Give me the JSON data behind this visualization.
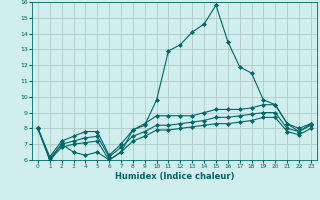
{
  "xlabel": "Humidex (Indice chaleur)",
  "x": [
    0,
    1,
    2,
    3,
    4,
    5,
    6,
    7,
    8,
    9,
    10,
    11,
    12,
    13,
    14,
    15,
    16,
    17,
    18,
    19,
    20,
    21,
    22,
    23
  ],
  "line1": [
    8,
    6,
    7,
    6.5,
    6.3,
    6.5,
    6,
    6.5,
    7.9,
    8.2,
    9.8,
    12.9,
    13.3,
    14.1,
    14.6,
    15.8,
    13.5,
    11.9,
    11.5,
    9.8,
    9.5,
    8.3,
    7.8,
    8.3
  ],
  "line2": [
    8,
    6.2,
    7.2,
    7.5,
    7.8,
    7.8,
    6.3,
    7.0,
    7.9,
    8.3,
    8.8,
    8.8,
    8.8,
    8.8,
    9.0,
    9.2,
    9.2,
    9.2,
    9.3,
    9.5,
    9.5,
    8.3,
    8.0,
    8.3
  ],
  "line3": [
    8,
    6.1,
    7.0,
    7.2,
    7.4,
    7.5,
    6.2,
    6.8,
    7.5,
    7.8,
    8.2,
    8.2,
    8.3,
    8.4,
    8.5,
    8.7,
    8.7,
    8.8,
    8.9,
    9.0,
    9.0,
    8.0,
    7.8,
    8.2
  ],
  "line4": [
    8,
    6.0,
    6.8,
    7.0,
    7.1,
    7.2,
    6.0,
    6.5,
    7.2,
    7.5,
    7.9,
    7.9,
    8.0,
    8.1,
    8.2,
    8.3,
    8.3,
    8.4,
    8.5,
    8.7,
    8.7,
    7.8,
    7.6,
    8.0
  ],
  "line_color": "#006666",
  "bg_color": "#d0eeee",
  "grid_color": "#b0c8c8",
  "ylim": [
    6,
    16
  ],
  "xlim": [
    -0.5,
    23.5
  ]
}
